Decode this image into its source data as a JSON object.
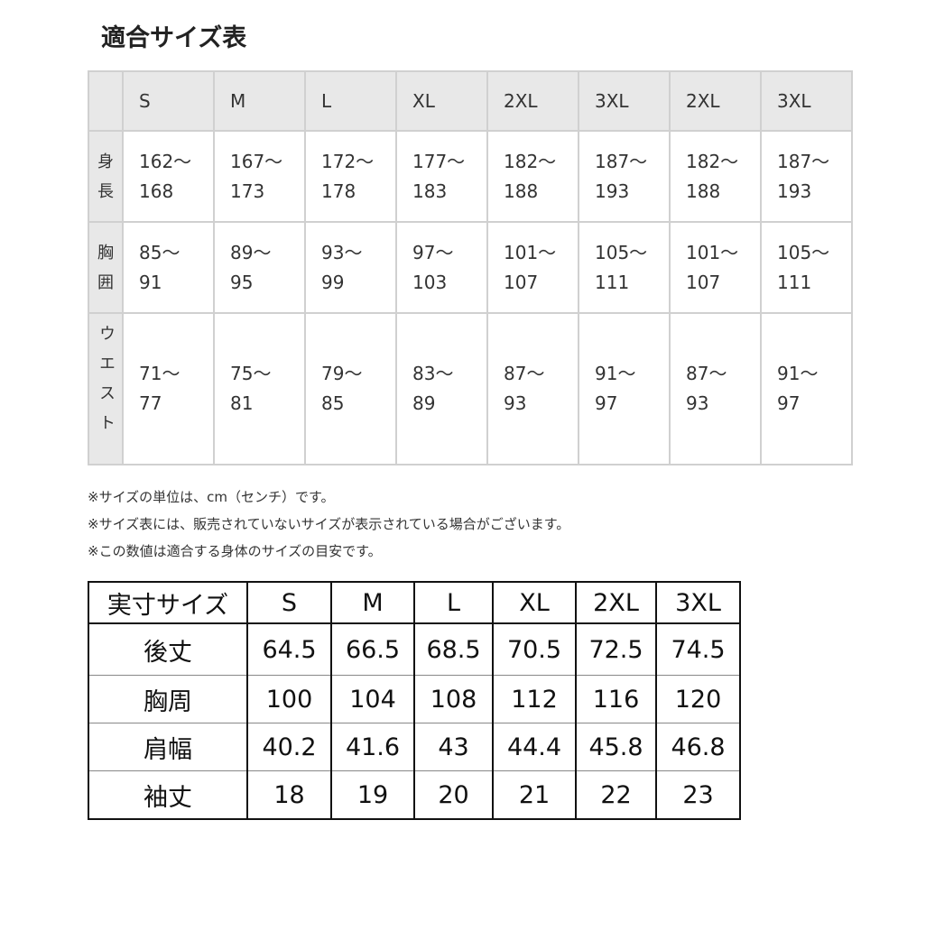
{
  "title": "適合サイズ表",
  "fit_table": {
    "headers": [
      "S",
      "M",
      "L",
      "XL",
      "2XL",
      "3XL",
      "2XL",
      "3XL"
    ],
    "rows": [
      {
        "label": "身長",
        "label_chars": [
          "身",
          "長"
        ],
        "cells": [
          [
            "162〜",
            "168"
          ],
          [
            "167〜",
            "173"
          ],
          [
            "172〜",
            "178"
          ],
          [
            "177〜",
            "183"
          ],
          [
            "182〜",
            "188"
          ],
          [
            "187〜",
            "193"
          ],
          [
            "182〜",
            "188"
          ],
          [
            "187〜",
            "193"
          ]
        ]
      },
      {
        "label": "胸囲",
        "label_chars": [
          "胸",
          "囲"
        ],
        "cells": [
          [
            "85〜",
            "91"
          ],
          [
            "89〜",
            "95"
          ],
          [
            "93〜",
            "99"
          ],
          [
            "97〜",
            "103"
          ],
          [
            "101〜",
            "107"
          ],
          [
            "105〜",
            "111"
          ],
          [
            "101〜",
            "107"
          ],
          [
            "105〜",
            "111"
          ]
        ]
      },
      {
        "label": "ウエスト",
        "label_chars": [
          "ウ",
          "エ",
          "ス",
          "ト"
        ],
        "cells": [
          [
            "71〜",
            "77"
          ],
          [
            "75〜",
            "81"
          ],
          [
            "79〜",
            "85"
          ],
          [
            "83〜",
            "89"
          ],
          [
            "87〜",
            "93"
          ],
          [
            "91〜",
            "97"
          ],
          [
            "87〜",
            "93"
          ],
          [
            "91〜",
            "97"
          ]
        ]
      }
    ]
  },
  "notes": [
    "※サイズの単位は、cm（センチ）です。",
    "※サイズ表には、販売されていないサイズが表示されている場合がございます。",
    "※この数値は適合する身体のサイズの目安です。"
  ],
  "actual_table": {
    "corner": "実寸サイズ",
    "headers": [
      "S",
      "M",
      "L",
      "XL",
      "2XL",
      "3XL"
    ],
    "rows": [
      {
        "label": "後丈",
        "values": [
          "64.5",
          "66.5",
          "68.5",
          "70.5",
          "72.5",
          "74.5"
        ]
      },
      {
        "label": "胸周",
        "values": [
          "100",
          "104",
          "108",
          "112",
          "116",
          "120"
        ]
      },
      {
        "label": "肩幅",
        "values": [
          "40.2",
          "41.6",
          "43",
          "44.4",
          "45.8",
          "46.8"
        ]
      },
      {
        "label": "袖丈",
        "values": [
          "18",
          "19",
          "20",
          "21",
          "22",
          "23"
        ]
      }
    ]
  }
}
